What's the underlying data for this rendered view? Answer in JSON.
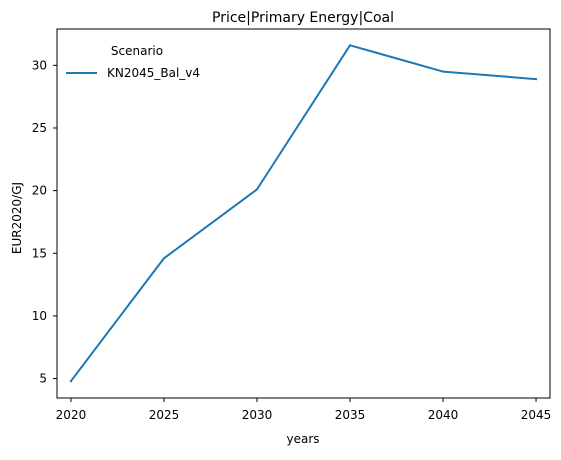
{
  "chart_data": {
    "type": "line",
    "title": "Price|Primary Energy|Coal",
    "xlabel": "years",
    "ylabel": "EUR2020/GJ",
    "x": [
      2020,
      2025,
      2030,
      2035,
      2040,
      2045
    ],
    "xticks": [
      2020,
      2025,
      2030,
      2035,
      2040,
      2045
    ],
    "yticks": [
      5,
      10,
      15,
      20,
      25,
      30
    ],
    "xlim": [
      2019.25,
      2045.75
    ],
    "ylim": [
      3.45,
      32.9
    ],
    "grid": false,
    "legend": {
      "title": "Scenario",
      "placement": "top-left"
    },
    "series": [
      {
        "name": "KN2045_Bal_v4",
        "color": "#1f77b4",
        "values": [
          4.8,
          14.6,
          20.1,
          31.6,
          29.5,
          28.9
        ]
      }
    ]
  }
}
